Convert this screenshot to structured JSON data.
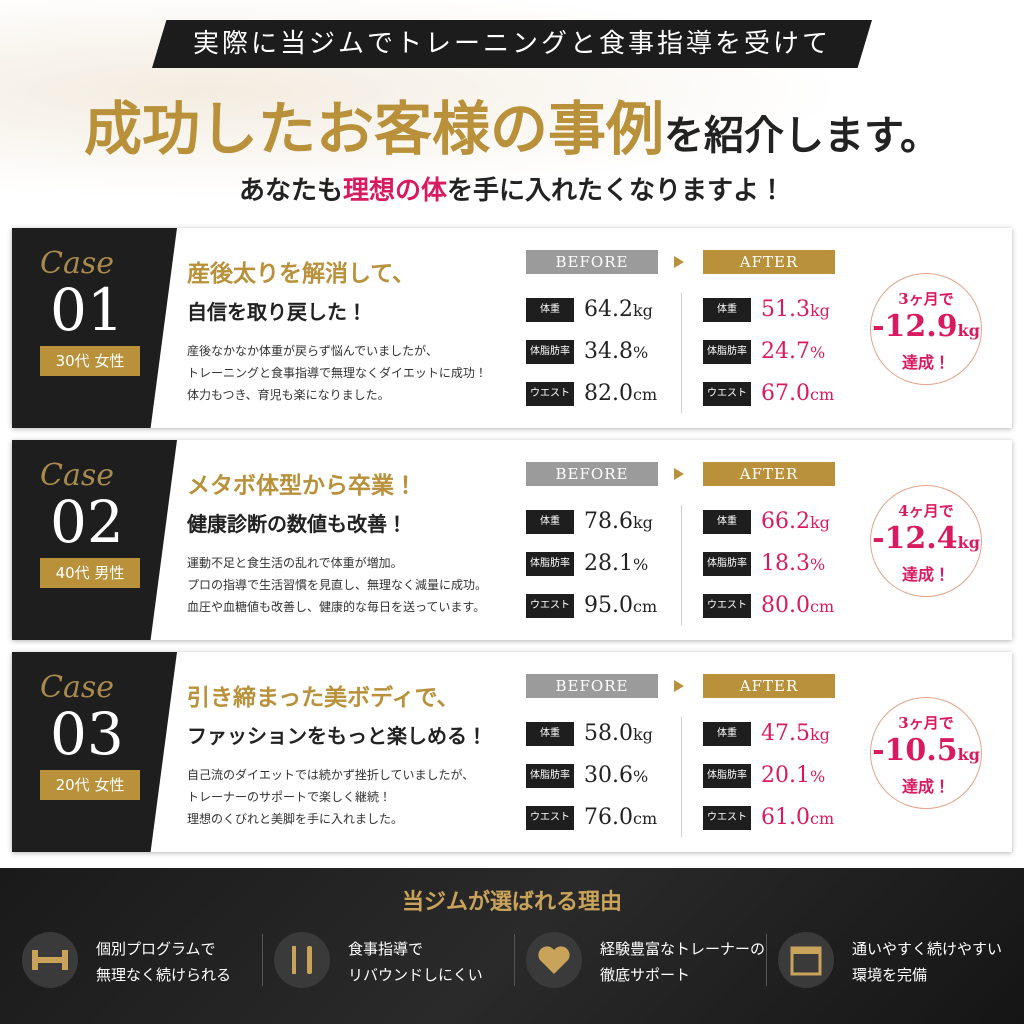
{
  "header": {
    "banner": "実際に当ジムでトレーニングと食事指導を受けて",
    "title_gold": "成功したお客様の事例",
    "title_rest": "を紹介します。",
    "subtitle_pre": "あなたも",
    "subtitle_pink": "理想の体",
    "subtitle_post": "を手に入れたくなりますよ！"
  },
  "cases": [
    {
      "case_label": "Case",
      "number": "01",
      "profile": "30代 女性",
      "headline": "産後太りを解消して、",
      "subheadline": "自信を取り戻した！",
      "description": [
        "産後なかなか体重が戻らず悩んでいましたが、",
        "トレーニングと食事指導で無理なくダイエットに成功！",
        "体力もつき、育児も楽になりました。"
      ],
      "before_label": "BEFORE",
      "after_label": "AFTER",
      "metrics": [
        {
          "label": "体重",
          "before": "64.2",
          "after": "51.3",
          "unit": "kg"
        },
        {
          "label": "体脂肪率",
          "before": "34.8",
          "after": "24.7",
          "unit": "%"
        },
        {
          "label": "ウエスト",
          "before": "82.0",
          "after": "67.0",
          "unit": "cm"
        }
      ],
      "result": {
        "period": "3ヶ月で",
        "amount": "-12.9",
        "unit": "kg",
        "suffix": "達成！"
      }
    },
    {
      "case_label": "Case",
      "number": "02",
      "profile": "40代 男性",
      "headline": "メタボ体型から卒業！",
      "subheadline": "健康診断の数値も改善！",
      "description": [
        "運動不足と食生活の乱れで体重が増加。",
        "プロの指導で生活習慣を見直し、無理なく減量に成功。",
        "血圧や血糖値も改善し、健康的な毎日を送っています。"
      ],
      "before_label": "BEFORE",
      "after_label": "AFTER",
      "metrics": [
        {
          "label": "体重",
          "before": "78.6",
          "after": "66.2",
          "unit": "kg"
        },
        {
          "label": "体脂肪率",
          "before": "28.1",
          "after": "18.3",
          "unit": "%"
        },
        {
          "label": "ウエスト",
          "before": "95.0",
          "after": "80.0",
          "unit": "cm"
        }
      ],
      "result": {
        "period": "4ヶ月で",
        "amount": "-12.4",
        "unit": "kg",
        "suffix": "達成！"
      }
    },
    {
      "case_label": "Case",
      "number": "03",
      "profile": "20代 女性",
      "headline": "引き締まった美ボディで、",
      "subheadline": "ファッションをもっと楽しめる！",
      "description": [
        "自己流のダイエットでは続かず挫折していましたが、",
        "トレーナーのサポートで楽しく継続！",
        "理想のくびれと美脚を手に入れました。"
      ],
      "before_label": "BEFORE",
      "after_label": "AFTER",
      "metrics": [
        {
          "label": "体重",
          "before": "58.0",
          "after": "47.5",
          "unit": "kg"
        },
        {
          "label": "体脂肪率",
          "before": "30.6",
          "after": "20.1",
          "unit": "%"
        },
        {
          "label": "ウエスト",
          "before": "76.0",
          "after": "61.0",
          "unit": "cm"
        }
      ],
      "result": {
        "period": "3ヶ月で",
        "amount": "-10.5",
        "unit": "kg",
        "suffix": "達成！"
      }
    }
  ],
  "footer": {
    "title": "当ジムが選ばれる理由",
    "reasons": [
      {
        "line1": "個別プログラムで",
        "line2": "無理なく続けられる"
      },
      {
        "line1": "食事指導で",
        "line2": "リバウンドしにくい"
      },
      {
        "line1": "経験豊富なトレーナーの",
        "line2": "徹底サポート"
      },
      {
        "line1": "通いやすく続けやすい",
        "line2": "環境を完備"
      }
    ]
  }
}
